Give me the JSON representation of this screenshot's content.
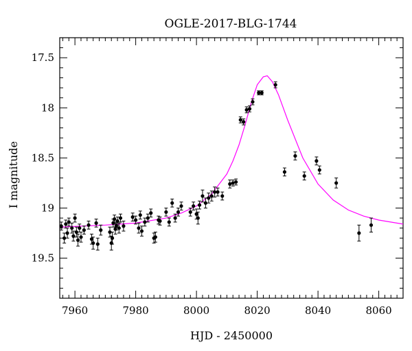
{
  "chart_data": {
    "type": "scatter",
    "title": "OGLE-2017-BLG-1744",
    "xlabel": "HJD - 2450000",
    "ylabel": "I magnitude",
    "xlim": [
      7955,
      8068
    ],
    "ylim": [
      19.9,
      17.3
    ],
    "y_inverted": true,
    "grid": false,
    "x_ticks": [
      7960,
      7980,
      8000,
      8020,
      8040,
      8060
    ],
    "y_ticks": [
      17.5,
      18,
      18.5,
      19,
      19.5
    ],
    "y_tick_labels": [
      "17.5",
      "18",
      "18.5",
      "19",
      "19.5"
    ],
    "x_minor_step": 2,
    "y_minor_step": 0.1,
    "colors": {
      "points": "#000000",
      "model": "#ff00ff"
    },
    "model": {
      "name": "",
      "x": [
        7955,
        7970,
        7980,
        7990,
        7995,
        8000,
        8005,
        8010,
        8012,
        8014,
        8016,
        8018,
        8020,
        8022,
        8023.3,
        8025,
        8027,
        8030,
        8035,
        8040,
        8045,
        8050,
        8055,
        8060,
        8068
      ],
      "y": [
        19.19,
        19.17,
        19.15,
        19.1,
        19.05,
        18.98,
        18.86,
        18.66,
        18.53,
        18.37,
        18.17,
        17.95,
        17.77,
        17.69,
        17.68,
        17.74,
        17.87,
        18.12,
        18.5,
        18.76,
        18.92,
        19.02,
        19.08,
        19.12,
        19.16
      ]
    },
    "series": [
      {
        "x": [
          7955.5,
          7956.5,
          7957,
          7957.5,
          7958,
          7959,
          7959.5,
          7960,
          7960.5,
          7961,
          7961.5,
          7962,
          7963,
          7964.5,
          7965.5,
          7966,
          7967,
          7967.5,
          7968.5,
          7971.5,
          7972,
          7972.3,
          7972.6,
          7973,
          7973.3,
          7973.6,
          7974,
          7974.5,
          7975,
          7976,
          7979,
          7980,
          7981,
          7981.5,
          7982,
          7983,
          7984,
          7985,
          7986,
          7986.5,
          7987.5,
          7988,
          7990,
          7991,
          7992,
          7993,
          7994,
          7995,
          7998,
          7999,
          8000,
          8000.5,
          8001,
          8002,
          8003,
          8004,
          8005,
          8006,
          8007,
          8008.5,
          8011,
          8012,
          8013,
          8014.5,
          8015.5,
          8016.5,
          8017.5,
          8018.5,
          8020.5,
          8021.5,
          8026,
          8029,
          8032.5,
          8035.5,
          8039.5,
          8040.5,
          8046,
          8053.5,
          8057.5
        ],
        "y": [
          19.18,
          19.3,
          19.16,
          19.25,
          19.14,
          19.2,
          19.28,
          19.1,
          19.24,
          19.32,
          19.2,
          19.29,
          19.22,
          19.17,
          19.31,
          19.35,
          19.15,
          19.36,
          19.22,
          19.24,
          19.35,
          19.3,
          19.15,
          19.11,
          19.21,
          19.18,
          19.13,
          19.2,
          19.1,
          19.18,
          19.09,
          19.12,
          19.2,
          19.07,
          19.23,
          19.14,
          19.1,
          19.05,
          19.3,
          19.29,
          19.12,
          19.13,
          19.04,
          19.14,
          18.95,
          19.1,
          19.04,
          18.98,
          19.04,
          18.98,
          19.06,
          19.1,
          18.97,
          18.88,
          18.95,
          18.9,
          18.88,
          18.84,
          18.84,
          18.88,
          18.76,
          18.75,
          18.74,
          18.12,
          18.14,
          18.02,
          18.01,
          17.94,
          17.85,
          17.85,
          17.77,
          18.64,
          18.48,
          18.68,
          18.53,
          18.62,
          18.75,
          19.25,
          19.17
        ],
        "yerr": [
          0.04,
          0.05,
          0.04,
          0.05,
          0.04,
          0.05,
          0.05,
          0.04,
          0.05,
          0.06,
          0.04,
          0.05,
          0.04,
          0.04,
          0.05,
          0.06,
          0.04,
          0.06,
          0.05,
          0.05,
          0.07,
          0.06,
          0.04,
          0.04,
          0.05,
          0.04,
          0.04,
          0.05,
          0.04,
          0.05,
          0.04,
          0.04,
          0.05,
          0.04,
          0.05,
          0.04,
          0.04,
          0.04,
          0.05,
          0.05,
          0.04,
          0.04,
          0.04,
          0.04,
          0.04,
          0.04,
          0.04,
          0.04,
          0.04,
          0.04,
          0.05,
          0.06,
          0.04,
          0.06,
          0.05,
          0.05,
          0.05,
          0.05,
          0.04,
          0.04,
          0.04,
          0.03,
          0.03,
          0.03,
          0.03,
          0.03,
          0.03,
          0.03,
          0.02,
          0.02,
          0.03,
          0.04,
          0.04,
          0.04,
          0.04,
          0.04,
          0.05,
          0.08,
          0.07
        ]
      }
    ]
  }
}
